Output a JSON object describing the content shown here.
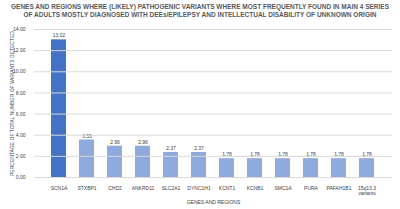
{
  "chart_data": {
    "type": "bar",
    "title": "GENES AND REGIONS WHERE (LIKELY) PATHOGENIC VARIANTS WHERE MOST FREQUENTLY FOUND IN MAIN 4 SERIES OF ADULTS MOSTLY DIAGNOSED WITH DEEs/EPILEPSY AND INTELLECTUAL DISABILITY OF UNKNOWN ORIGIN",
    "x_label": "GENES AND REGIONS",
    "y_label": "PERCENTAGE OF TOTAL NUMBER OF VARIANTS DETECTED",
    "categories": [
      "SCN1A",
      "STXBP1",
      "CHD2",
      "ANKRD11",
      "SLC2A1",
      "DYNC1H1",
      "KCNT1",
      "KCNB1",
      "SMC1A",
      "PURA",
      "PAFAH1B1",
      "15q13.3 variants"
    ],
    "values": [
      13.02,
      3.55,
      2.96,
      2.96,
      2.37,
      2.37,
      1.78,
      1.78,
      1.78,
      1.78,
      1.78,
      1.78
    ],
    "colors": [
      "#4472c4",
      "#8faadc",
      "#8faadc",
      "#8faadc",
      "#8faadc",
      "#8faadc",
      "#8faadc",
      "#8faadc",
      "#8faadc",
      "#8faadc",
      "#8faadc",
      "#8faadc"
    ],
    "ylim": [
      0,
      14
    ],
    "yticks": [
      {
        "value": 0,
        "label": "0.00"
      },
      {
        "value": 2,
        "label": "2.00"
      },
      {
        "value": 4,
        "label": "4.00"
      },
      {
        "value": 6,
        "label": "6.00"
      },
      {
        "value": 8,
        "label": "8.00"
      },
      {
        "value": 10,
        "label": "10.00"
      },
      {
        "value": 12,
        "label": "12.00"
      },
      {
        "value": 14,
        "label": "14.00"
      }
    ],
    "grid": true,
    "data_labels": true
  }
}
